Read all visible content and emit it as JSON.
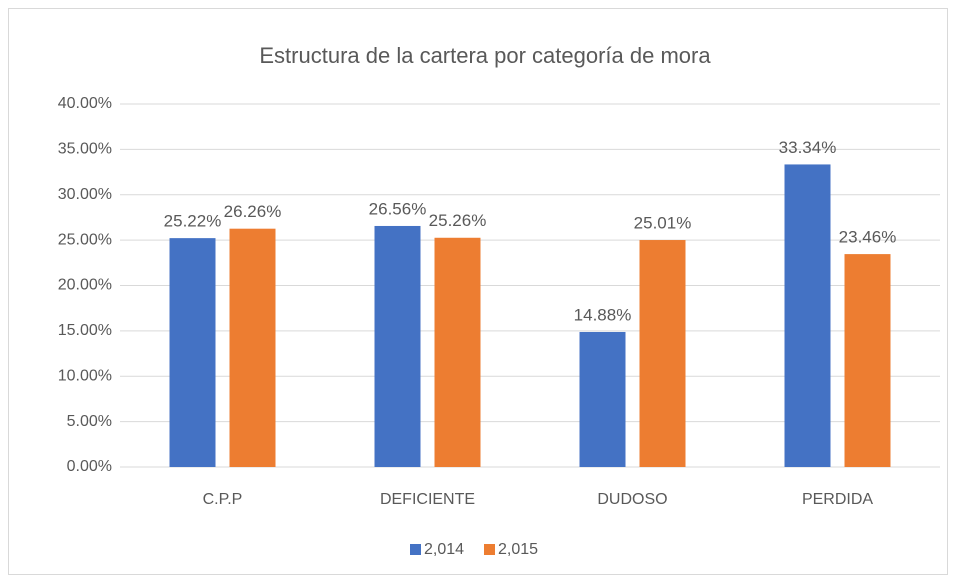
{
  "chart_data": {
    "type": "bar",
    "title": "Estructura de la cartera por categoría de mora",
    "categories": [
      "C.P.P",
      "DEFICIENTE",
      "DUDOSO",
      "PERDIDA"
    ],
    "series": [
      {
        "name": "2,014",
        "color": "#4472c4",
        "values": [
          25.22,
          26.56,
          14.88,
          33.34
        ],
        "value_labels": [
          "25.22%",
          "26.56%",
          "14.88%",
          "33.34%"
        ]
      },
      {
        "name": "2,015",
        "color": "#ed7d31",
        "values": [
          26.26,
          25.26,
          25.01,
          23.46
        ],
        "value_labels": [
          "26.26%",
          "25.26%",
          "25.01%",
          "23.46%"
        ]
      }
    ],
    "ylim": [
      0,
      40
    ],
    "yticks": [
      {
        "value": 0,
        "label": "0.00%"
      },
      {
        "value": 5,
        "label": "5.00%"
      },
      {
        "value": 10,
        "label": "10.00%"
      },
      {
        "value": 15,
        "label": "15.00%"
      },
      {
        "value": 20,
        "label": "20.00%"
      },
      {
        "value": 25,
        "label": "25.00%"
      },
      {
        "value": 30,
        "label": "30.00%"
      },
      {
        "value": 35,
        "label": "35.00%"
      },
      {
        "value": 40,
        "label": "40.00%"
      }
    ],
    "grid": true,
    "legend": "bottom"
  }
}
